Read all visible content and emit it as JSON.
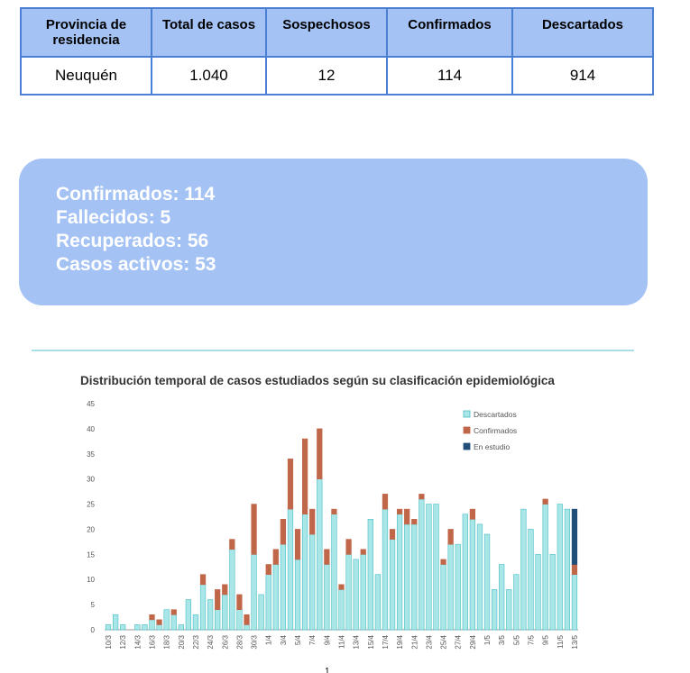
{
  "table": {
    "headers": [
      "Provincia de residencia",
      "Total de casos",
      "Sospechosos",
      "Confirmados",
      "Descartados"
    ],
    "row": [
      "Neuquén",
      "1.040",
      "12",
      "114",
      "914"
    ]
  },
  "summary": {
    "lines": [
      "Confirmados: 114",
      "Fallecidos: 5",
      "Recuperados: 56",
      "Casos activos: 53"
    ]
  },
  "page_number": "1",
  "chart_data": {
    "type": "bar",
    "stacked": true,
    "title": "Distribución temporal de casos estudiados según su clasificación epidemiológica",
    "ylim": [
      0,
      45
    ],
    "yticks": [
      0,
      5,
      10,
      15,
      20,
      25,
      30,
      35,
      40,
      45
    ],
    "x_tick_labels": [
      "10/3",
      "12/3",
      "14/3",
      "16/3",
      "18/3",
      "20/3",
      "22/3",
      "24/3",
      "26/3",
      "28/3",
      "30/3",
      "1/4",
      "3/4",
      "5/4",
      "7/4",
      "9/4",
      "11/4",
      "13/4",
      "15/4",
      "17/4",
      "19/4",
      "21/4",
      "23/4",
      "25/4",
      "27/4",
      "29/4",
      "1/5",
      "3/5",
      "5/5",
      "7/5",
      "9/5",
      "11/5",
      "13/5"
    ],
    "categories": [
      "10/3",
      "11/3",
      "12/3",
      "13/3",
      "14/3",
      "15/3",
      "16/3",
      "17/3",
      "18/3",
      "19/3",
      "20/3",
      "21/3",
      "22/3",
      "23/3",
      "24/3",
      "25/3",
      "26/3",
      "27/3",
      "28/3",
      "29/3",
      "30/3",
      "31/3",
      "1/4",
      "2/4",
      "3/4",
      "4/4",
      "5/4",
      "6/4",
      "7/4",
      "8/4",
      "9/4",
      "10/4",
      "11/4",
      "12/4",
      "13/4",
      "14/4",
      "15/4",
      "16/4",
      "17/4",
      "18/4",
      "19/4",
      "20/4",
      "21/4",
      "22/4",
      "23/4",
      "24/4",
      "25/4",
      "26/4",
      "27/4",
      "28/4",
      "29/4",
      "30/4",
      "1/5",
      "2/5",
      "3/5",
      "4/5",
      "5/5",
      "6/5",
      "7/5",
      "8/5",
      "9/5",
      "10/5",
      "11/5",
      "12/5",
      "13/5"
    ],
    "legend_position": "top-right",
    "series": [
      {
        "name": "Descartados",
        "color": "#a8e6e8",
        "stroke": "#48bfc6",
        "values": [
          1,
          3,
          1,
          0,
          1,
          1,
          2,
          1,
          4,
          3,
          1,
          6,
          3,
          9,
          6,
          4,
          7,
          16,
          4,
          1,
          15,
          7,
          11,
          13,
          17,
          24,
          14,
          23,
          19,
          30,
          13,
          23,
          8,
          15,
          14,
          15,
          22,
          11,
          24,
          18,
          23,
          21,
          21,
          26,
          25,
          25,
          13,
          17,
          17,
          23,
          22,
          21,
          19,
          8,
          13,
          8,
          11,
          24,
          20,
          15,
          25,
          15,
          25,
          24,
          11
        ]
      },
      {
        "name": "Confirmados",
        "color": "#c0674a",
        "stroke": "#c0674a",
        "values": [
          0,
          0,
          0,
          0,
          0,
          0,
          1,
          1,
          0,
          1,
          0,
          0,
          0,
          2,
          0,
          4,
          2,
          2,
          3,
          2,
          10,
          0,
          2,
          3,
          5,
          10,
          6,
          15,
          5,
          10,
          3,
          1,
          1,
          3,
          0,
          1,
          0,
          0,
          3,
          2,
          1,
          3,
          1,
          1,
          0,
          0,
          1,
          3,
          0,
          0,
          2,
          0,
          0,
          0,
          0,
          0,
          0,
          0,
          0,
          0,
          1,
          0,
          0,
          0,
          2
        ]
      },
      {
        "name": "En estudio",
        "color": "#1f4e79",
        "stroke": "#1f4e79",
        "values": [
          0,
          0,
          0,
          0,
          0,
          0,
          0,
          0,
          0,
          0,
          0,
          0,
          0,
          0,
          0,
          0,
          0,
          0,
          0,
          0,
          0,
          0,
          0,
          0,
          0,
          0,
          0,
          0,
          0,
          0,
          0,
          0,
          0,
          0,
          0,
          0,
          0,
          0,
          0,
          0,
          0,
          0,
          0,
          0,
          0,
          0,
          0,
          0,
          0,
          0,
          0,
          0,
          0,
          0,
          0,
          0,
          0,
          0,
          0,
          0,
          0,
          0,
          0,
          0,
          11
        ]
      }
    ]
  }
}
